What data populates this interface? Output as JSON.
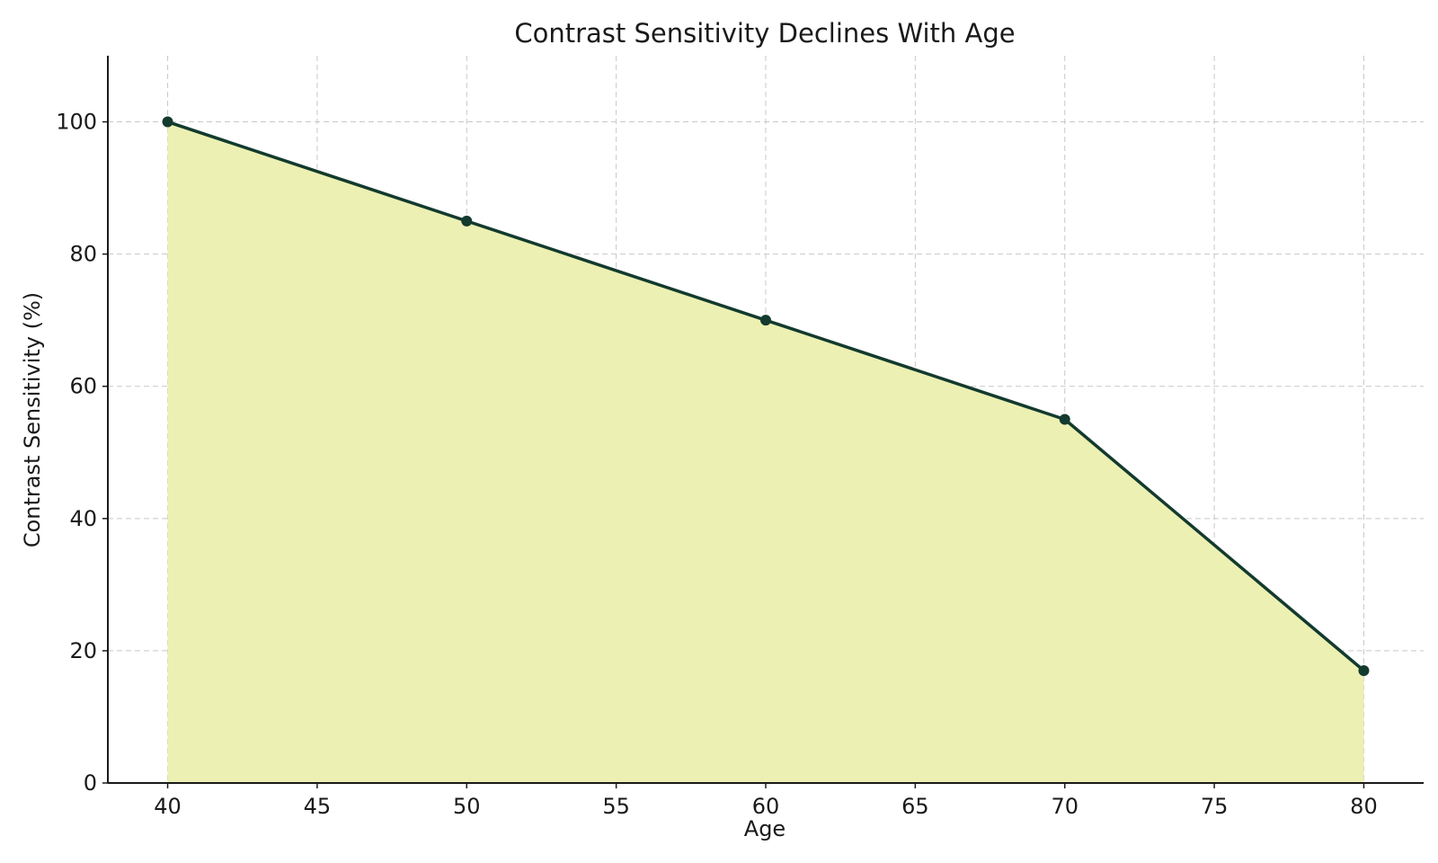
{
  "chart_data": {
    "type": "area",
    "title": "Contrast Sensitivity Declines With Age",
    "xlabel": "Age",
    "ylabel": "Contrast Sensitivity (%)",
    "x": [
      40,
      50,
      60,
      70,
      80
    ],
    "series": [
      {
        "values": [
          100,
          85,
          70,
          55,
          17
        ]
      }
    ],
    "xlim": [
      38,
      82
    ],
    "ylim": [
      0,
      110
    ],
    "xticks": [
      40,
      45,
      50,
      55,
      60,
      65,
      70,
      75,
      80
    ],
    "yticks": [
      0,
      20,
      40,
      60,
      80,
      100
    ],
    "grid": true,
    "markers": true,
    "colors": {
      "line": "#133a2e",
      "marker": "#133a2e",
      "fill": "#ecf0b2",
      "grid": "#c8c8c8",
      "axis": "#1a1a1a"
    }
  }
}
